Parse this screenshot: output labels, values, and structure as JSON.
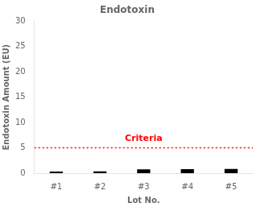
{
  "chart_data": {
    "type": "bar",
    "title": "Endotoxin",
    "xlabel": "Lot No.",
    "ylabel": "Endotoxin Amount (EU)",
    "categories": [
      "#1",
      "#2",
      "#3",
      "#4",
      "#5"
    ],
    "values": [
      0.3,
      0.35,
      0.75,
      0.8,
      0.85
    ],
    "color": "#000000",
    "ylim": [
      0,
      30
    ],
    "yticks": [
      0,
      5,
      10,
      15,
      20,
      25,
      30
    ],
    "grid": false,
    "legend": false,
    "reference_lines": [
      {
        "y": 5,
        "color": "#ff0000",
        "line_style": "dotted",
        "label": "Criteria"
      }
    ]
  }
}
